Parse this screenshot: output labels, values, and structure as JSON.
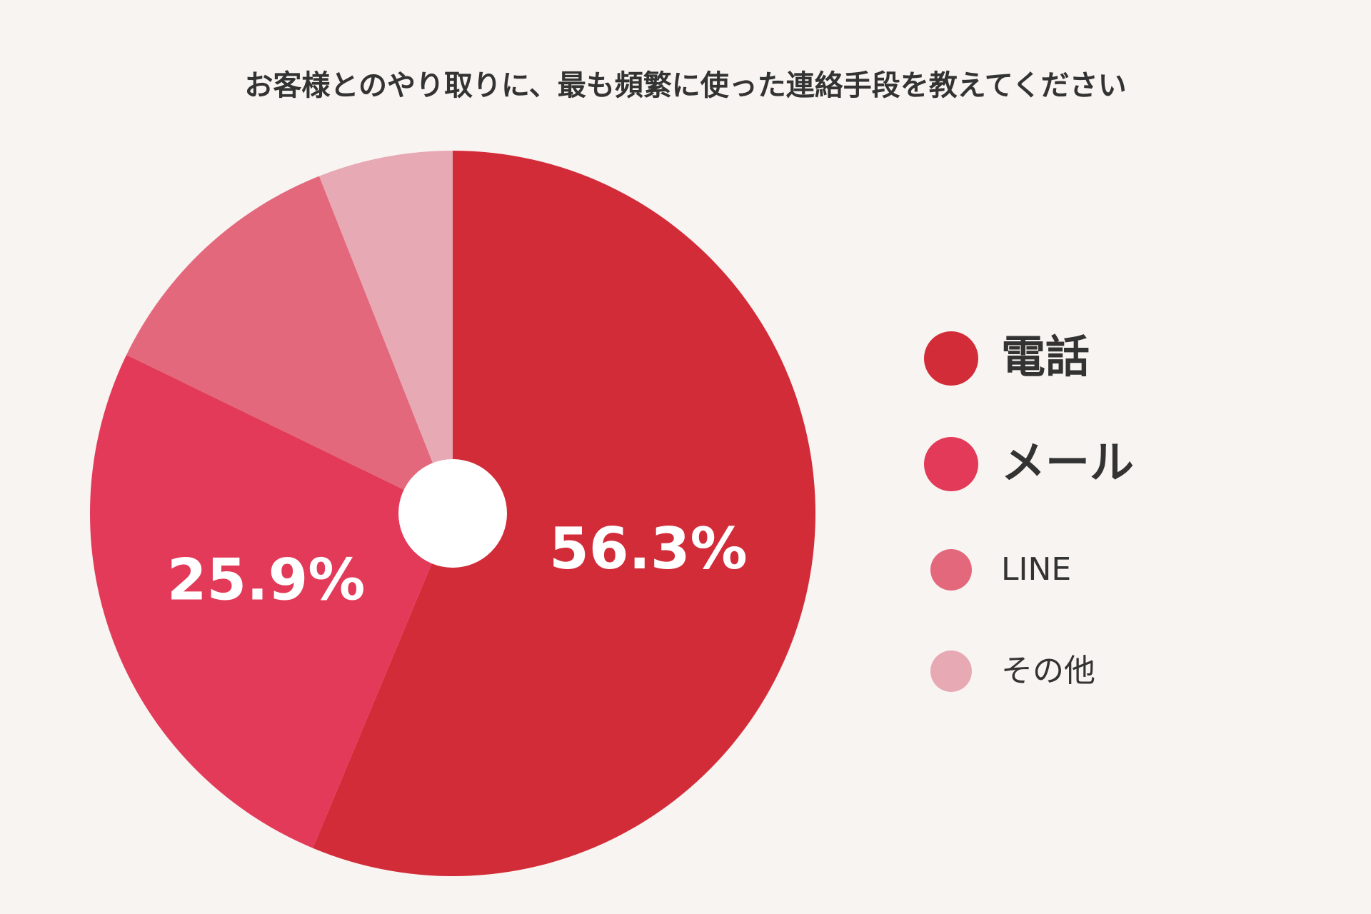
{
  "chart_data": {
    "type": "pie",
    "title": "お客様とのやり取りに、最も頻繁に使った連絡手段を教えてください",
    "categories": [
      "電話",
      "メール",
      "LINE",
      "その他"
    ],
    "values": [
      56.3,
      25.9,
      11.8,
      6.0
    ],
    "value_labels": [
      "56.3%",
      "25.9%",
      null,
      null
    ],
    "colors": [
      "#d22c39",
      "#e23a58",
      "#e3687b",
      "#e7a9b3"
    ],
    "legend": "right"
  }
}
